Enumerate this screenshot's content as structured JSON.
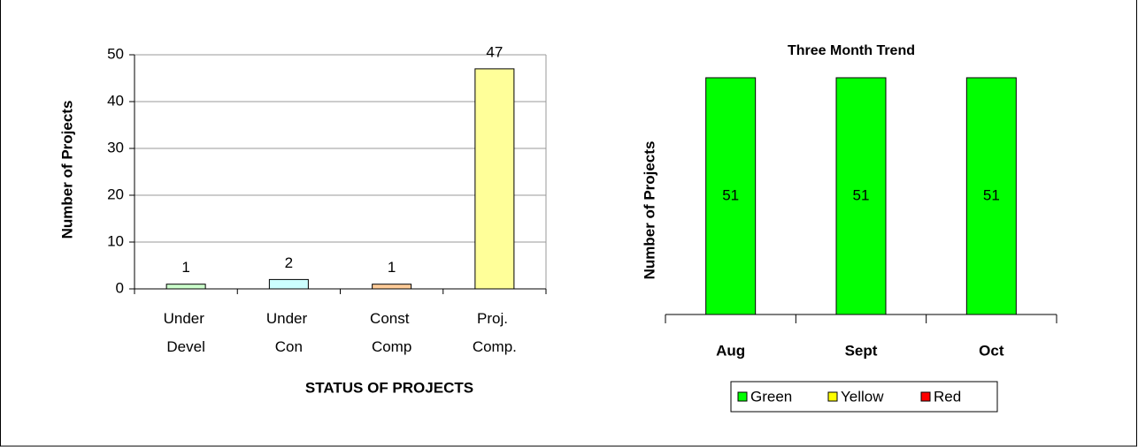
{
  "chart_data": [
    {
      "type": "bar",
      "categories": [
        "Under Devel",
        "Under Con",
        "Const Comp",
        "Proj. Comp."
      ],
      "values": [
        1,
        2,
        1,
        47
      ],
      "colors": [
        "#ccffcc",
        "#ccffff",
        "#ffcc99",
        "#ffff99"
      ],
      "x_label": "STATUS OF PROJECTS",
      "y_label": "Number of Projects",
      "ylim": [
        0,
        50
      ],
      "yticks": [
        0,
        10,
        20,
        30,
        40,
        50
      ],
      "grid": true
    },
    {
      "type": "stacked_bar",
      "title": "Three Month Trend",
      "categories": [
        "Aug",
        "Sept",
        "Oct"
      ],
      "y_label": "Number of Projects",
      "ylim": [
        0,
        51
      ],
      "series": [
        {
          "name": "Green",
          "color": "#00ff00",
          "values": [
            51,
            51,
            51
          ]
        },
        {
          "name": "Yellow",
          "color": "#ffff00",
          "values": [
            0,
            0,
            0
          ]
        },
        {
          "name": "Red",
          "color": "#ff0000",
          "values": [
            0,
            0,
            0
          ]
        }
      ],
      "legend": "bottom"
    }
  ]
}
